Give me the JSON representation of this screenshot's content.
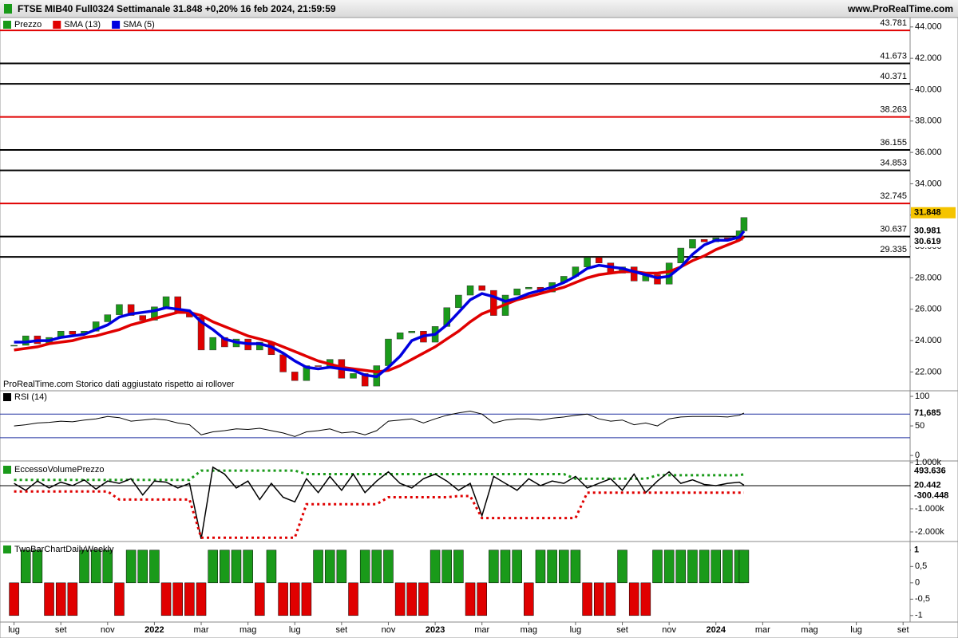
{
  "header": {
    "title": "FTSE MIB40 Full0324 Settimanale 31.848 +0,20% 16 feb 2024, 21:59:59",
    "site": "www.ProRealTime.com"
  },
  "note": "ProRealTime.com  Storico dati aggiustato rispetto ai rollover",
  "x": [
    0,
    0.5,
    1,
    1.5,
    2,
    2.5,
    3,
    3.5,
    4,
    4.5,
    5,
    5.5,
    6,
    6.5,
    7,
    7.5,
    8,
    8.5,
    9,
    9.5,
    10,
    10.5,
    11,
    11.5,
    12,
    12.5,
    13,
    13.5,
    14,
    14.5,
    15,
    15.5,
    16,
    16.5,
    17,
    17.5,
    18,
    18.5,
    19,
    19.5,
    20,
    20.5,
    21,
    21.5,
    22,
    22.5,
    23,
    23.5,
    24,
    24.5,
    25,
    25.5,
    26,
    26.5,
    27,
    27.5,
    28,
    28.5,
    29,
    29.5,
    30,
    30.5,
    31,
    31.2
  ],
  "xlim": [
    -0.6,
    38.3
  ],
  "xticks": [
    {
      "value": 0,
      "label": "lug"
    },
    {
      "value": 2,
      "label": "set"
    },
    {
      "value": 4,
      "label": "nov"
    },
    {
      "value": 6,
      "label": "2022"
    },
    {
      "value": 8,
      "label": "mar"
    },
    {
      "value": 10,
      "label": "mag"
    },
    {
      "value": 12,
      "label": "lug"
    },
    {
      "value": 14,
      "label": "set"
    },
    {
      "value": 16,
      "label": "nov"
    },
    {
      "value": 18,
      "label": "2023"
    },
    {
      "value": 20,
      "label": "mar"
    },
    {
      "value": 22,
      "label": "mag"
    },
    {
      "value": 24,
      "label": "lug"
    },
    {
      "value": 26,
      "label": "set"
    },
    {
      "value": 28,
      "label": "nov"
    },
    {
      "value": 30,
      "label": "2024"
    },
    {
      "value": 32,
      "label": "mar"
    },
    {
      "value": 34,
      "label": "mag"
    },
    {
      "value": 36,
      "label": "lug"
    },
    {
      "value": 38,
      "label": "set"
    }
  ],
  "price_panel": {
    "type": "candlestick",
    "ylim": [
      20800,
      44600
    ],
    "down_color": "#e00000",
    "yticks": [
      {
        "value": 22000,
        "label": "22.000"
      },
      {
        "value": 24000,
        "label": "24.000"
      },
      {
        "value": 26000,
        "label": "26.000"
      },
      {
        "value": 28000,
        "label": "28.000"
      },
      {
        "value": 30000,
        "label": "30.000"
      },
      {
        "value": 32000,
        "label": "32.000"
      },
      {
        "value": 34000,
        "label": "34.000"
      },
      {
        "value": 36000,
        "label": "36.000"
      },
      {
        "value": 38000,
        "label": "38.000"
      },
      {
        "value": 40000,
        "label": "40.000"
      },
      {
        "value": 42000,
        "label": "42.000"
      },
      {
        "value": 44000,
        "label": "44.000"
      }
    ],
    "series": [
      {
        "name": "Prezzo",
        "color": "#1a9a1a",
        "badge_color": "#f5c400",
        "last_label": "31.848",
        "values": [
          23700,
          24300,
          23800,
          24200,
          24600,
          24400,
          24600,
          25200,
          25650,
          26300,
          25600,
          25300,
          26150,
          26800,
          25800,
          25500,
          23400,
          24200,
          23600,
          24100,
          23400,
          23900,
          23100,
          22000,
          21450,
          22400,
          22350,
          22800,
          21600,
          21900,
          21100,
          22400,
          24100,
          24500,
          24600,
          23900,
          24900,
          26100,
          26900,
          27500,
          27200,
          25600,
          26900,
          27300,
          27400,
          27100,
          27700,
          28100,
          28700,
          29300,
          28950,
          28300,
          28700,
          27800,
          28200,
          27600,
          28950,
          29900,
          30450,
          30300,
          30550,
          30400,
          31000,
          31848
        ]
      },
      {
        "name": "SMA (13)",
        "color": "#e00000",
        "last_label": "30.619",
        "values": [
          23400,
          23500,
          23600,
          23800,
          23900,
          24000,
          24200,
          24300,
          24500,
          24700,
          25000,
          25200,
          25400,
          25600,
          25800,
          25800,
          25600,
          25200,
          24900,
          24600,
          24300,
          24100,
          23900,
          23600,
          23300,
          23000,
          22700,
          22500,
          22300,
          22200,
          22100,
          22000,
          22100,
          22400,
          22800,
          23200,
          23600,
          24100,
          24600,
          25200,
          25700,
          26000,
          26300,
          26600,
          26800,
          27000,
          27200,
          27400,
          27700,
          28000,
          28200,
          28300,
          28400,
          28400,
          28300,
          28300,
          28400,
          28700,
          29100,
          29400,
          29800,
          30100,
          30400,
          30619
        ]
      },
      {
        "name": "SMA (5)",
        "color": "#0000e0",
        "last_label": "30.981",
        "values": [
          23900,
          23900,
          24000,
          24000,
          24200,
          24300,
          24400,
          24700,
          25000,
          25500,
          25700,
          25800,
          25900,
          26100,
          26000,
          25900,
          25200,
          24700,
          24100,
          23900,
          23800,
          23800,
          23600,
          23200,
          22700,
          22300,
          22200,
          22300,
          22200,
          22100,
          21800,
          21700,
          22300,
          23000,
          24000,
          24300,
          24400,
          25000,
          25800,
          26600,
          27000,
          26800,
          26500,
          26700,
          27000,
          27200,
          27400,
          27700,
          28100,
          28600,
          28800,
          28700,
          28600,
          28400,
          28200,
          28000,
          28100,
          28700,
          29500,
          30100,
          30400,
          30400,
          30600,
          30981
        ]
      }
    ],
    "levels": [
      {
        "value": 43781,
        "label": "43.781",
        "color": "#e00000"
      },
      {
        "value": 41673,
        "label": "41.673",
        "color": "#000000"
      },
      {
        "value": 40371,
        "label": "40.371",
        "color": "#000000"
      },
      {
        "value": 38263,
        "label": "38.263",
        "color": "#e00000"
      },
      {
        "value": 36155,
        "label": "36.155",
        "color": "#000000"
      },
      {
        "value": 34853,
        "label": "34.853",
        "color": "#000000"
      },
      {
        "value": 32745,
        "label": "32.745",
        "color": "#e00000"
      },
      {
        "value": 30637,
        "label": "30.637",
        "color": "#000000"
      },
      {
        "value": 29335,
        "label": "29.335",
        "color": "#000000"
      }
    ]
  },
  "rsi_panel": {
    "type": "line",
    "ylim": [
      -8,
      109.5
    ],
    "yticks": [
      0,
      50,
      100
    ],
    "levels": [
      70,
      30
    ],
    "level_color": "#2030a0",
    "series": [
      {
        "name": "RSI (14)",
        "color": "#000000",
        "last_label": "71,685",
        "values": [
          50,
          52,
          55,
          56,
          58,
          57,
          60,
          62,
          66,
          64,
          58,
          60,
          62,
          60,
          55,
          52,
          35,
          40,
          42,
          45,
          44,
          46,
          42,
          38,
          32,
          40,
          42,
          45,
          38,
          40,
          35,
          42,
          58,
          60,
          62,
          55,
          62,
          68,
          72,
          75,
          70,
          55,
          60,
          62,
          62,
          60,
          63,
          65,
          68,
          70,
          62,
          58,
          60,
          52,
          55,
          50,
          62,
          65,
          66,
          66,
          66,
          65,
          68,
          71.685
        ]
      }
    ]
  },
  "volume_panel": {
    "type": "line",
    "title": "EccessoVolumePrezzo",
    "ylim": [
      -2380,
      1034
    ],
    "yticks": [
      {
        "value": 1000,
        "label": "1.000k"
      },
      0,
      {
        "value": -1000,
        "label": "-1.000k"
      },
      {
        "value": -2000,
        "label": "-2.000k"
      }
    ],
    "series": [
      {
        "color": "#1a9a1a",
        "line_style": "dotted",
        "values": [
          250,
          250,
          250,
          250,
          250,
          250,
          250,
          250,
          250,
          250,
          250,
          250,
          250,
          250,
          250,
          250,
          650,
          650,
          650,
          650,
          650,
          650,
          650,
          650,
          650,
          500,
          500,
          500,
          500,
          500,
          500,
          500,
          500,
          500,
          500,
          500,
          500,
          500,
          500,
          500,
          500,
          500,
          500,
          500,
          500,
          500,
          500,
          500,
          300,
          300,
          300,
          300,
          300,
          300,
          300,
          450,
          450,
          450,
          450,
          450,
          450,
          450,
          450,
          493.636
        ]
      },
      {
        "color": "#000000",
        "line_style": "solid",
        "values": [
          100,
          -200,
          200,
          -100,
          150,
          0,
          250,
          -150,
          200,
          100,
          300,
          -400,
          200,
          150,
          -100,
          100,
          -2300,
          800,
          500,
          -100,
          200,
          -600,
          100,
          -500,
          -700,
          300,
          -300,
          400,
          -200,
          500,
          -300,
          200,
          600,
          100,
          -100,
          300,
          500,
          200,
          -200,
          100,
          -1300,
          400,
          100,
          -200,
          300,
          0,
          200,
          100,
          400,
          -100,
          100,
          300,
          -200,
          500,
          -300,
          200,
          600,
          100,
          250,
          50,
          0,
          100,
          150,
          20.442
        ]
      },
      {
        "color": "#e00000",
        "line_style": "dotted",
        "values": [
          -250,
          -250,
          -250,
          -250,
          -250,
          -250,
          -250,
          -250,
          -250,
          -600,
          -600,
          -600,
          -600,
          -600,
          -600,
          -600,
          -2250,
          -2250,
          -2250,
          -2250,
          -2250,
          -2250,
          -2250,
          -2250,
          -2250,
          -800,
          -800,
          -800,
          -800,
          -800,
          -800,
          -800,
          -500,
          -500,
          -500,
          -500,
          -500,
          -500,
          -450,
          -450,
          -1400,
          -1400,
          -1400,
          -1400,
          -1400,
          -1400,
          -1400,
          -1400,
          -1400,
          -300,
          -300,
          -300,
          -300,
          -300,
          -300,
          -300,
          -300,
          -300,
          -300,
          -300,
          -300,
          -300,
          -300,
          -300.448
        ]
      }
    ]
  },
  "twobar_panel": {
    "type": "bar",
    "title": "TwoBarChartDailyWeekly",
    "ylim": [
      -1.2,
      1.24
    ],
    "up_color": "#1a9a1a",
    "down_color": "#e00000",
    "yticks": [
      1,
      {
        "value": 0.5,
        "label": "0,5"
      },
      0,
      {
        "value": -0.5,
        "label": "-0,5"
      },
      -1
    ],
    "values": [
      -1,
      1,
      1,
      -1,
      -1,
      -1,
      1,
      1,
      1,
      -1,
      1,
      1,
      1,
      -1,
      -1,
      -1,
      -1,
      1,
      1,
      1,
      1,
      -1,
      1,
      -1,
      -1,
      -1,
      1,
      1,
      1,
      -1,
      1,
      1,
      1,
      -1,
      -1,
      -1,
      1,
      1,
      1,
      -1,
      -1,
      1,
      1,
      1,
      -1,
      1,
      1,
      1,
      1,
      -1,
      -1,
      -1,
      1,
      -1,
      -1,
      1,
      1,
      1,
      1,
      1,
      1,
      1,
      1,
      1
    ]
  }
}
